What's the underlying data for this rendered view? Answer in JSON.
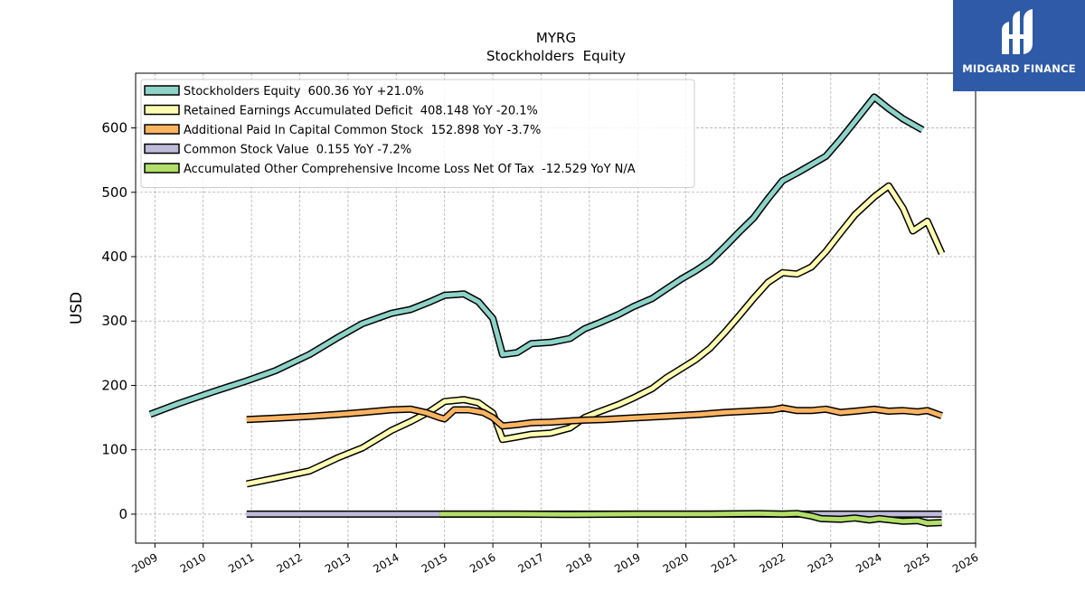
{
  "chart_data": {
    "type": "line",
    "title": "MYRG",
    "subtitle": "Stockholders  Equity",
    "ylabel": "USD",
    "xlabel": "",
    "xlim": [
      2008.6,
      2026.0
    ],
    "ylim": [
      -45,
      685
    ],
    "yticks": [
      0,
      100,
      200,
      300,
      400,
      500,
      600
    ],
    "xticks": [
      "2009",
      "2010",
      "2011",
      "2012",
      "2013",
      "2014",
      "2015",
      "2016",
      "2017",
      "2018",
      "2019",
      "2020",
      "2021",
      "2022",
      "2023",
      "2024",
      "2025",
      "2026"
    ],
    "grid": true,
    "legend_position": "top-left",
    "series": [
      {
        "name": "Stockholders Equity  600.36 YoY +21.0%",
        "color": "#8dd3c7",
        "points": [
          [
            2008.9,
            155
          ],
          [
            2009.5,
            172
          ],
          [
            2010.2,
            190
          ],
          [
            2010.9,
            207
          ],
          [
            2011.5,
            223
          ],
          [
            2012.2,
            248
          ],
          [
            2012.8,
            275
          ],
          [
            2013.3,
            296
          ],
          [
            2013.9,
            312
          ],
          [
            2014.3,
            318
          ],
          [
            2014.7,
            330
          ],
          [
            2015.0,
            340
          ],
          [
            2015.4,
            342
          ],
          [
            2015.7,
            330
          ],
          [
            2016.0,
            304
          ],
          [
            2016.2,
            248
          ],
          [
            2016.5,
            251
          ],
          [
            2016.8,
            265
          ],
          [
            2017.2,
            267
          ],
          [
            2017.6,
            273
          ],
          [
            2017.9,
            288
          ],
          [
            2018.2,
            297
          ],
          [
            2018.6,
            310
          ],
          [
            2018.9,
            322
          ],
          [
            2019.3,
            335
          ],
          [
            2019.6,
            350
          ],
          [
            2019.9,
            365
          ],
          [
            2020.2,
            378
          ],
          [
            2020.5,
            393
          ],
          [
            2020.8,
            415
          ],
          [
            2021.1,
            438
          ],
          [
            2021.4,
            460
          ],
          [
            2021.7,
            490
          ],
          [
            2022.0,
            518
          ],
          [
            2022.3,
            530
          ],
          [
            2022.6,
            543
          ],
          [
            2022.9,
            556
          ],
          [
            2023.2,
            582
          ],
          [
            2023.5,
            610
          ],
          [
            2023.9,
            648
          ],
          [
            2024.2,
            630
          ],
          [
            2024.5,
            614
          ],
          [
            2024.9,
            597
          ]
        ]
      },
      {
        "name": "Retained Earnings Accumulated Deficit  408.148 YoY -20.1%",
        "color": "#ffffb3",
        "points": [
          [
            2010.9,
            47
          ],
          [
            2011.5,
            56
          ],
          [
            2012.2,
            67
          ],
          [
            2012.8,
            88
          ],
          [
            2013.3,
            103
          ],
          [
            2013.9,
            130
          ],
          [
            2014.3,
            144
          ],
          [
            2014.7,
            160
          ],
          [
            2015.0,
            175
          ],
          [
            2015.4,
            178
          ],
          [
            2015.7,
            173
          ],
          [
            2016.0,
            157
          ],
          [
            2016.2,
            116
          ],
          [
            2016.5,
            120
          ],
          [
            2016.8,
            124
          ],
          [
            2017.2,
            126
          ],
          [
            2017.6,
            134
          ],
          [
            2017.9,
            150
          ],
          [
            2018.2,
            159
          ],
          [
            2018.6,
            170
          ],
          [
            2018.9,
            180
          ],
          [
            2019.3,
            195
          ],
          [
            2019.6,
            212
          ],
          [
            2019.9,
            226
          ],
          [
            2020.2,
            240
          ],
          [
            2020.5,
            258
          ],
          [
            2020.8,
            282
          ],
          [
            2021.1,
            308
          ],
          [
            2021.4,
            335
          ],
          [
            2021.7,
            360
          ],
          [
            2022.0,
            375
          ],
          [
            2022.3,
            373
          ],
          [
            2022.6,
            384
          ],
          [
            2022.9,
            408
          ],
          [
            2023.2,
            437
          ],
          [
            2023.5,
            465
          ],
          [
            2023.9,
            493
          ],
          [
            2024.2,
            510
          ],
          [
            2024.5,
            475
          ],
          [
            2024.7,
            440
          ],
          [
            2025.0,
            455
          ],
          [
            2025.3,
            405
          ]
        ]
      },
      {
        "name": "Additional Paid In Capital Common Stock  152.898 YoY -3.7%",
        "color": "#fdb462",
        "points": [
          [
            2010.9,
            147
          ],
          [
            2011.5,
            149
          ],
          [
            2012.2,
            152
          ],
          [
            2012.8,
            155
          ],
          [
            2013.3,
            158
          ],
          [
            2013.9,
            162
          ],
          [
            2014.3,
            163
          ],
          [
            2014.6,
            158
          ],
          [
            2014.9,
            150
          ],
          [
            2015.0,
            148
          ],
          [
            2015.2,
            162
          ],
          [
            2015.5,
            162
          ],
          [
            2015.8,
            158
          ],
          [
            2016.0,
            150
          ],
          [
            2016.2,
            137
          ],
          [
            2016.5,
            139
          ],
          [
            2016.8,
            142
          ],
          [
            2017.2,
            143
          ],
          [
            2017.6,
            145
          ],
          [
            2017.9,
            146
          ],
          [
            2018.3,
            147
          ],
          [
            2018.8,
            149
          ],
          [
            2019.3,
            151
          ],
          [
            2019.8,
            153
          ],
          [
            2020.3,
            155
          ],
          [
            2020.8,
            158
          ],
          [
            2021.3,
            160
          ],
          [
            2021.8,
            162
          ],
          [
            2022.0,
            165
          ],
          [
            2022.3,
            161
          ],
          [
            2022.6,
            161
          ],
          [
            2022.9,
            163
          ],
          [
            2023.2,
            158
          ],
          [
            2023.5,
            160
          ],
          [
            2023.9,
            163
          ],
          [
            2024.2,
            160
          ],
          [
            2024.5,
            161
          ],
          [
            2024.8,
            159
          ],
          [
            2025.0,
            161
          ],
          [
            2025.3,
            153
          ]
        ]
      },
      {
        "name": "Common Stock Value  0.155 YoY -7.2%",
        "color": "#bebada",
        "points": [
          [
            2010.9,
            0
          ],
          [
            2015.0,
            0
          ],
          [
            2025.3,
            0
          ]
        ]
      },
      {
        "name": "Accumulated Other Comprehensive Income Loss Net Of Tax  -12.529 YoY N/A",
        "color": "#b3de69",
        "points": [
          [
            2014.9,
            0
          ],
          [
            2016.5,
            0
          ],
          [
            2017.5,
            -0.5
          ],
          [
            2019.0,
            0
          ],
          [
            2020.5,
            0
          ],
          [
            2021.5,
            1
          ],
          [
            2022.0,
            0
          ],
          [
            2022.3,
            1
          ],
          [
            2022.6,
            -3
          ],
          [
            2022.8,
            -7
          ],
          [
            2023.2,
            -8
          ],
          [
            2023.5,
            -6
          ],
          [
            2023.8,
            -9
          ],
          [
            2024.0,
            -7
          ],
          [
            2024.5,
            -11
          ],
          [
            2024.8,
            -10
          ],
          [
            2025.0,
            -14
          ],
          [
            2025.3,
            -13
          ]
        ]
      }
    ]
  },
  "logo": {
    "text": "MIDGARD FINANCE",
    "color": "#2e5aa7"
  }
}
